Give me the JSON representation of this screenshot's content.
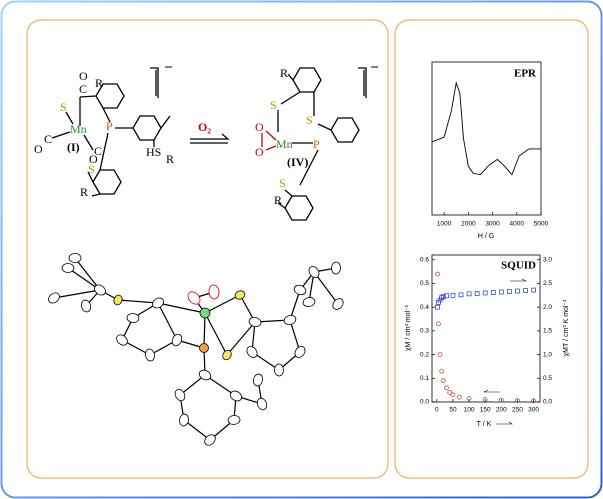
{
  "scheme": {
    "complex_I": {
      "labels": [
        "O",
        "C",
        "R",
        "S",
        "Mn",
        "P",
        "(I)",
        "C",
        "O",
        "C",
        "O",
        "HS",
        "R",
        "S",
        "R"
      ]
    },
    "reagent": "O₂",
    "complex_IV": {
      "labels": [
        "R",
        "S",
        "S",
        "O",
        "O",
        "Mn",
        "P",
        "(IV)",
        "S",
        "R"
      ]
    }
  },
  "epr": {
    "type": "line",
    "title": "EPR",
    "x_label": "H / G",
    "x": [
      500,
      1000,
      1300,
      1500,
      1650,
      1800,
      2000,
      2200,
      2500,
      2800,
      3200,
      3500,
      3800,
      4100,
      4500,
      5000
    ],
    "values": [
      0.05,
      0.12,
      0.5,
      0.9,
      0.75,
      0.1,
      -0.3,
      -0.4,
      -0.42,
      -0.3,
      -0.2,
      -0.3,
      -0.42,
      -0.15,
      -0.05,
      -0.05
    ],
    "color": "#000000",
    "xlim": [
      500,
      5000
    ],
    "xticks": [
      1000,
      2000,
      3000,
      4000,
      5000
    ],
    "ylim": [
      -1,
      1.2
    ]
  },
  "squid": {
    "type": "scatter",
    "title": "SQUID",
    "x_label": "T / K",
    "y_label": "χM / cm³ mol⁻¹",
    "y2_label": "χMT / cm³ K mol⁻¹",
    "xlim": [
      -15,
      320
    ],
    "xticks": [
      0,
      50,
      100,
      150,
      200,
      250,
      300
    ],
    "ylim": [
      0,
      0.62
    ],
    "yticks": [
      {
        "value": 0,
        "label": "0.0"
      },
      {
        "value": 0.1,
        "label": "0.1"
      },
      {
        "value": 0.2,
        "label": "0.2"
      },
      {
        "value": 0.3,
        "label": "0.3"
      },
      {
        "value": 0.4,
        "label": "0.4"
      },
      {
        "value": 0.5,
        "label": "0.5"
      },
      {
        "value": 0.6,
        "label": "0.6"
      }
    ],
    "y2lim": [
      0,
      3.1
    ],
    "y2ticks": [
      {
        "value": 0,
        "label": "0.0"
      },
      {
        "value": 0.5,
        "label": "0.5"
      },
      {
        "value": 1,
        "label": "1.0"
      },
      {
        "value": 1.5,
        "label": "1.5"
      },
      {
        "value": 2,
        "label": "2.0"
      },
      {
        "value": 2.5,
        "label": "2.5"
      },
      {
        "value": 3,
        "label": "3.0"
      }
    ],
    "series": [
      {
        "color": "#c0392b",
        "x": [
          2,
          5,
          10,
          15,
          20,
          30,
          40,
          50,
          70,
          100,
          150,
          200,
          250,
          300
        ],
        "values": [
          0.54,
          0.33,
          0.2,
          0.13,
          0.09,
          0.06,
          0.04,
          0.03,
          0.02,
          0.015,
          0.01,
          0.008,
          0.006,
          0.005
        ]
      },
      {
        "color": "#2233cc",
        "axis": "y2",
        "x": [
          2,
          5,
          10,
          15,
          20,
          30,
          50,
          75,
          100,
          125,
          150,
          175,
          200,
          225,
          250,
          275,
          300
        ],
        "values": [
          2.0,
          2.1,
          2.15,
          2.2,
          2.22,
          2.24,
          2.25,
          2.26,
          2.28,
          2.29,
          2.3,
          2.31,
          2.32,
          2.33,
          2.34,
          2.35,
          2.36
        ]
      }
    ]
  }
}
